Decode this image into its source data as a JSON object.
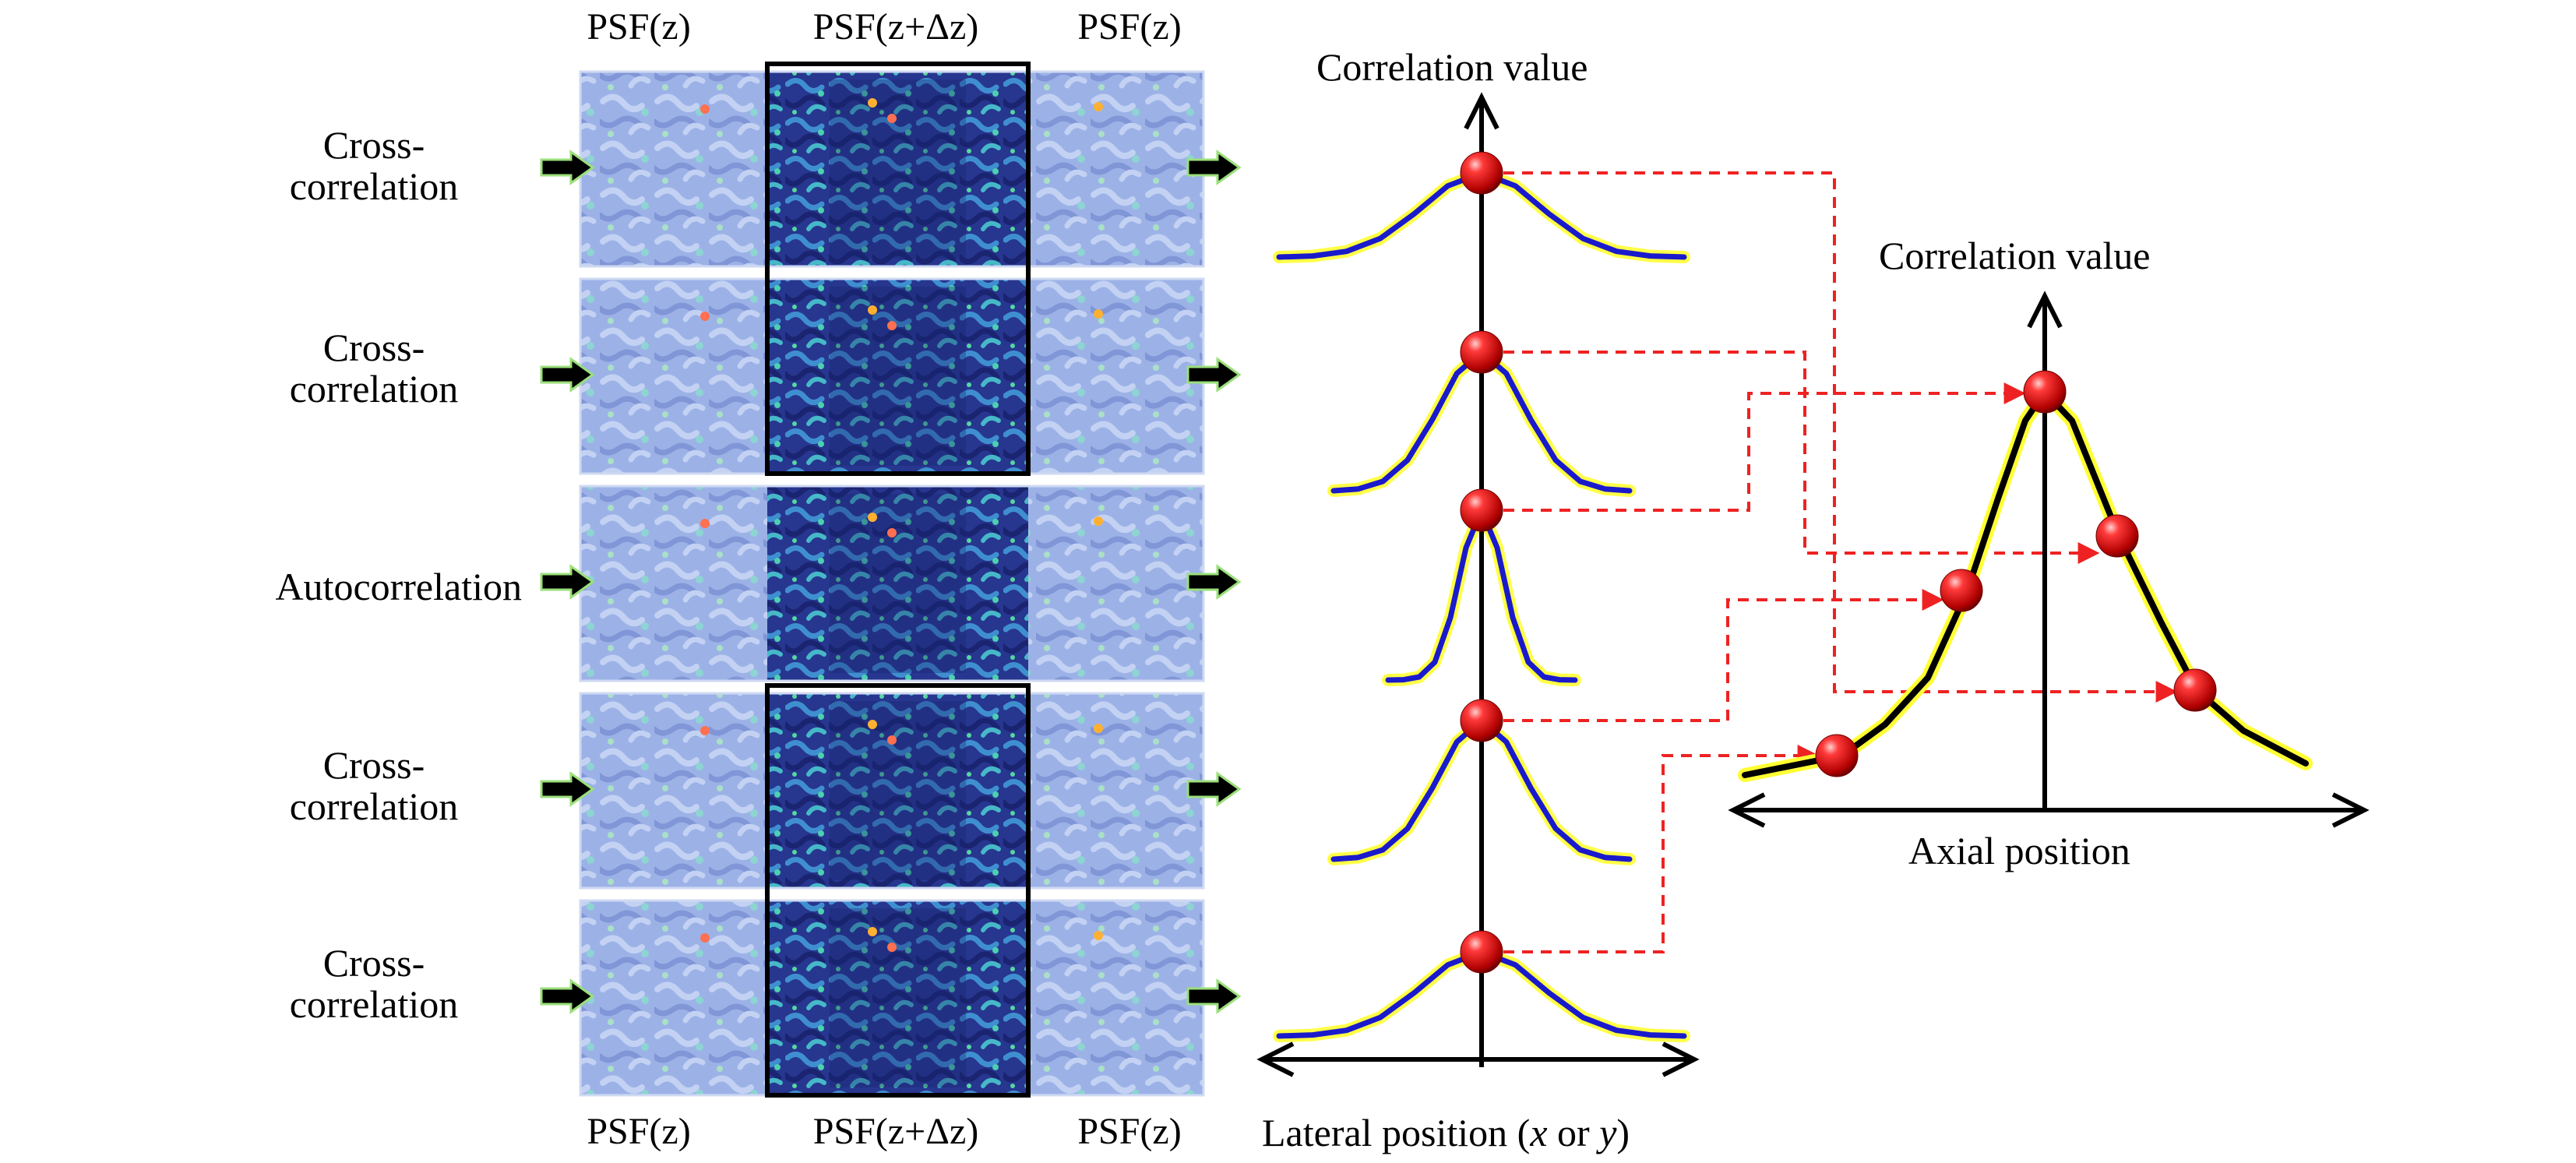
{
  "headers": {
    "top": [
      "PSF(z)",
      "PSF(z+Δz)",
      "PSF(z)"
    ],
    "bottom": [
      "PSF(z)",
      "PSF(z+Δz)",
      "PSF(z)"
    ]
  },
  "rows": [
    {
      "line1": "Cross-",
      "line2": "correlation"
    },
    {
      "line1": "Cross-",
      "line2": "correlation"
    },
    {
      "line1": "",
      "line2": "Autocorrelation"
    },
    {
      "line1": "Cross-",
      "line2": "correlation"
    },
    {
      "line1": "Cross-",
      "line2": "correlation"
    }
  ],
  "lateral_plot": {
    "ylabel": "Correlation value",
    "xlabel_prefix": "Lateral position (",
    "xlabel_x": "x",
    "xlabel_mid": " or ",
    "xlabel_y": "y",
    "xlabel_suffix": ")"
  },
  "axial_plot": {
    "ylabel": "Correlation value",
    "xlabel": "Axial position"
  },
  "colors": {
    "curve_blue": "#1a1acc",
    "curve_glow": "#ffff33",
    "marker_red": "#e01010",
    "dashed_link": "#ee2222",
    "psf_base": "#8fa8e0",
    "psf_dark": "#2a3a9a"
  }
}
